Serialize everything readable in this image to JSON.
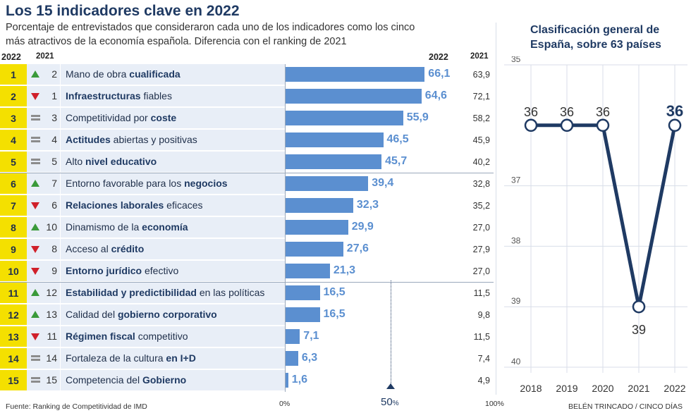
{
  "title": "Los 15 indicadores clave en 2022",
  "subtitle_line1": "Porcentaje de entrevistados que consideraron cada uno de los indicadores como los cinco",
  "subtitle_line2": "más atractivos de la economía española. Diferencia con el ranking de 2021",
  "col_2022": "2022",
  "col_2021": "2021",
  "bar_axis": {
    "min_label": "0%",
    "mid_label": "50",
    "mid_unit": "%",
    "max_label": "100%"
  },
  "rows": [
    {
      "rank": "1",
      "trend": "up",
      "prev": "2",
      "pre": "Mano de obra ",
      "bold": "cualificada",
      "post": "",
      "value": 66.1,
      "label": "66,1",
      "v2021": "63,9"
    },
    {
      "rank": "2",
      "trend": "down",
      "prev": "1",
      "pre": "",
      "bold": "Infraestructuras",
      "post": " fiables",
      "value": 64.6,
      "label": "64,6",
      "v2021": "72,1"
    },
    {
      "rank": "3",
      "trend": "same",
      "prev": "3",
      "pre": "Competitividad por ",
      "bold": "coste",
      "post": "",
      "value": 55.9,
      "label": "55,9",
      "v2021": "58,2"
    },
    {
      "rank": "4",
      "trend": "same",
      "prev": "4",
      "pre": "",
      "bold": "Actitudes",
      "post": " abiertas y positivas",
      "value": 46.5,
      "label": "46,5",
      "v2021": "45,9"
    },
    {
      "rank": "5",
      "trend": "same",
      "prev": "5",
      "pre": "Alto ",
      "bold": "nivel educativo",
      "post": "",
      "value": 45.7,
      "label": "45,7",
      "v2021": "40,2"
    },
    {
      "rank": "6",
      "trend": "up",
      "prev": "7",
      "pre": "Entorno favorable para los ",
      "bold": "negocios",
      "post": "",
      "value": 39.4,
      "label": "39,4",
      "v2021": "32,8"
    },
    {
      "rank": "7",
      "trend": "down",
      "prev": "6",
      "pre": "",
      "bold": "Relaciones laborales",
      "post": " eficaces",
      "value": 32.3,
      "label": "32,3",
      "v2021": "35,2"
    },
    {
      "rank": "8",
      "trend": "up",
      "prev": "10",
      "pre": "Dinamismo de la ",
      "bold": "economía",
      "post": "",
      "value": 29.9,
      "label": "29,9",
      "v2021": "27,0"
    },
    {
      "rank": "9",
      "trend": "down",
      "prev": "8",
      "pre": "Acceso al ",
      "bold": "crédito",
      "post": "",
      "value": 27.6,
      "label": "27,6",
      "v2021": "27,9"
    },
    {
      "rank": "10",
      "trend": "down",
      "prev": "9",
      "pre": "",
      "bold": "Entorno jurídico",
      "post": " efectivo",
      "value": 21.3,
      "label": "21,3",
      "v2021": "27,0"
    },
    {
      "rank": "11",
      "trend": "up",
      "prev": "12",
      "pre": "",
      "bold": "Estabilidad y predictibilidad",
      "post": " en las políticas",
      "value": 16.5,
      "label": "16,5",
      "v2021": "11,5"
    },
    {
      "rank": "12",
      "trend": "up",
      "prev": "13",
      "pre": "Calidad del ",
      "bold": "gobierno corporativo",
      "post": "",
      "value": 16.5,
      "label": "16,5",
      "v2021": "9,8"
    },
    {
      "rank": "13",
      "trend": "down",
      "prev": "11",
      "pre": "",
      "bold": "Régimen fiscal",
      "post": " competitivo",
      "value": 7.1,
      "label": "7,1",
      "v2021": "11,5"
    },
    {
      "rank": "14",
      "trend": "same",
      "prev": "14",
      "pre": "Fortaleza de la cultura ",
      "bold": "en I+D",
      "post": "",
      "value": 6.3,
      "label": "6,3",
      "v2021": "7,4"
    },
    {
      "rank": "15",
      "trend": "same",
      "prev": "15",
      "pre": "Competencia del ",
      "bold": "Gobierno",
      "post": "",
      "value": 1.6,
      "label": "1,6",
      "v2021": "4,9"
    }
  ],
  "footer_source": "Fuente: Ranking de Competitividad de IMD",
  "footer_credit": "BELÉN TRINCADO / CINCO DÍAS",
  "chart_data": [
    {
      "type": "bar",
      "title": "Los 15 indicadores clave en 2022",
      "categories": [
        "Mano de obra cualificada",
        "Infraestructuras fiables",
        "Competitividad por coste",
        "Actitudes abiertas y positivas",
        "Alto nivel educativo",
        "Entorno favorable para los negocios",
        "Relaciones laborales eficaces",
        "Dinamismo de la economía",
        "Acceso al crédito",
        "Entorno jurídico efectivo",
        "Estabilidad y predictibilidad en las políticas",
        "Calidad del gobierno corporativo",
        "Régimen fiscal competitivo",
        "Fortaleza de la cultura en I+D",
        "Competencia del Gobierno"
      ],
      "series": [
        {
          "name": "2022",
          "values": [
            66.1,
            64.6,
            55.9,
            46.5,
            45.7,
            39.4,
            32.3,
            29.9,
            27.6,
            21.3,
            16.5,
            16.5,
            7.1,
            6.3,
            1.6
          ]
        },
        {
          "name": "2021",
          "values": [
            63.9,
            72.1,
            58.2,
            45.9,
            40.2,
            32.8,
            35.2,
            27.0,
            27.9,
            27.0,
            11.5,
            9.8,
            11.5,
            7.4,
            4.9
          ]
        }
      ],
      "xlim": [
        0,
        100
      ],
      "orientation": "horizontal"
    },
    {
      "type": "line",
      "title": "Clasificación general de España, sobre 63 países",
      "title_lines": [
        "Clasificación general de",
        "España, sobre 63 países"
      ],
      "x": [
        "2018",
        "2019",
        "2020",
        "2021",
        "2022"
      ],
      "values": [
        36,
        36,
        36,
        39,
        36
      ],
      "value_labels": [
        "36",
        "36",
        "36",
        "39",
        "36"
      ],
      "y_ticks": [
        "35",
        "37",
        "38",
        "39",
        "40"
      ],
      "y_ticks_note_values": [
        35,
        37,
        38,
        39,
        40
      ],
      "ylim": [
        35,
        40
      ],
      "y_inverted": true,
      "line_color": "#1f3a63",
      "grid": true
    }
  ],
  "colors": {
    "bar": "#5b8fd0",
    "rank_bg": "#f4e000",
    "row_bg": "#e8eef7",
    "up": "#3a9a3a",
    "down": "#d0202a",
    "same": "#8c8c8c",
    "line": "#1f3a63"
  }
}
